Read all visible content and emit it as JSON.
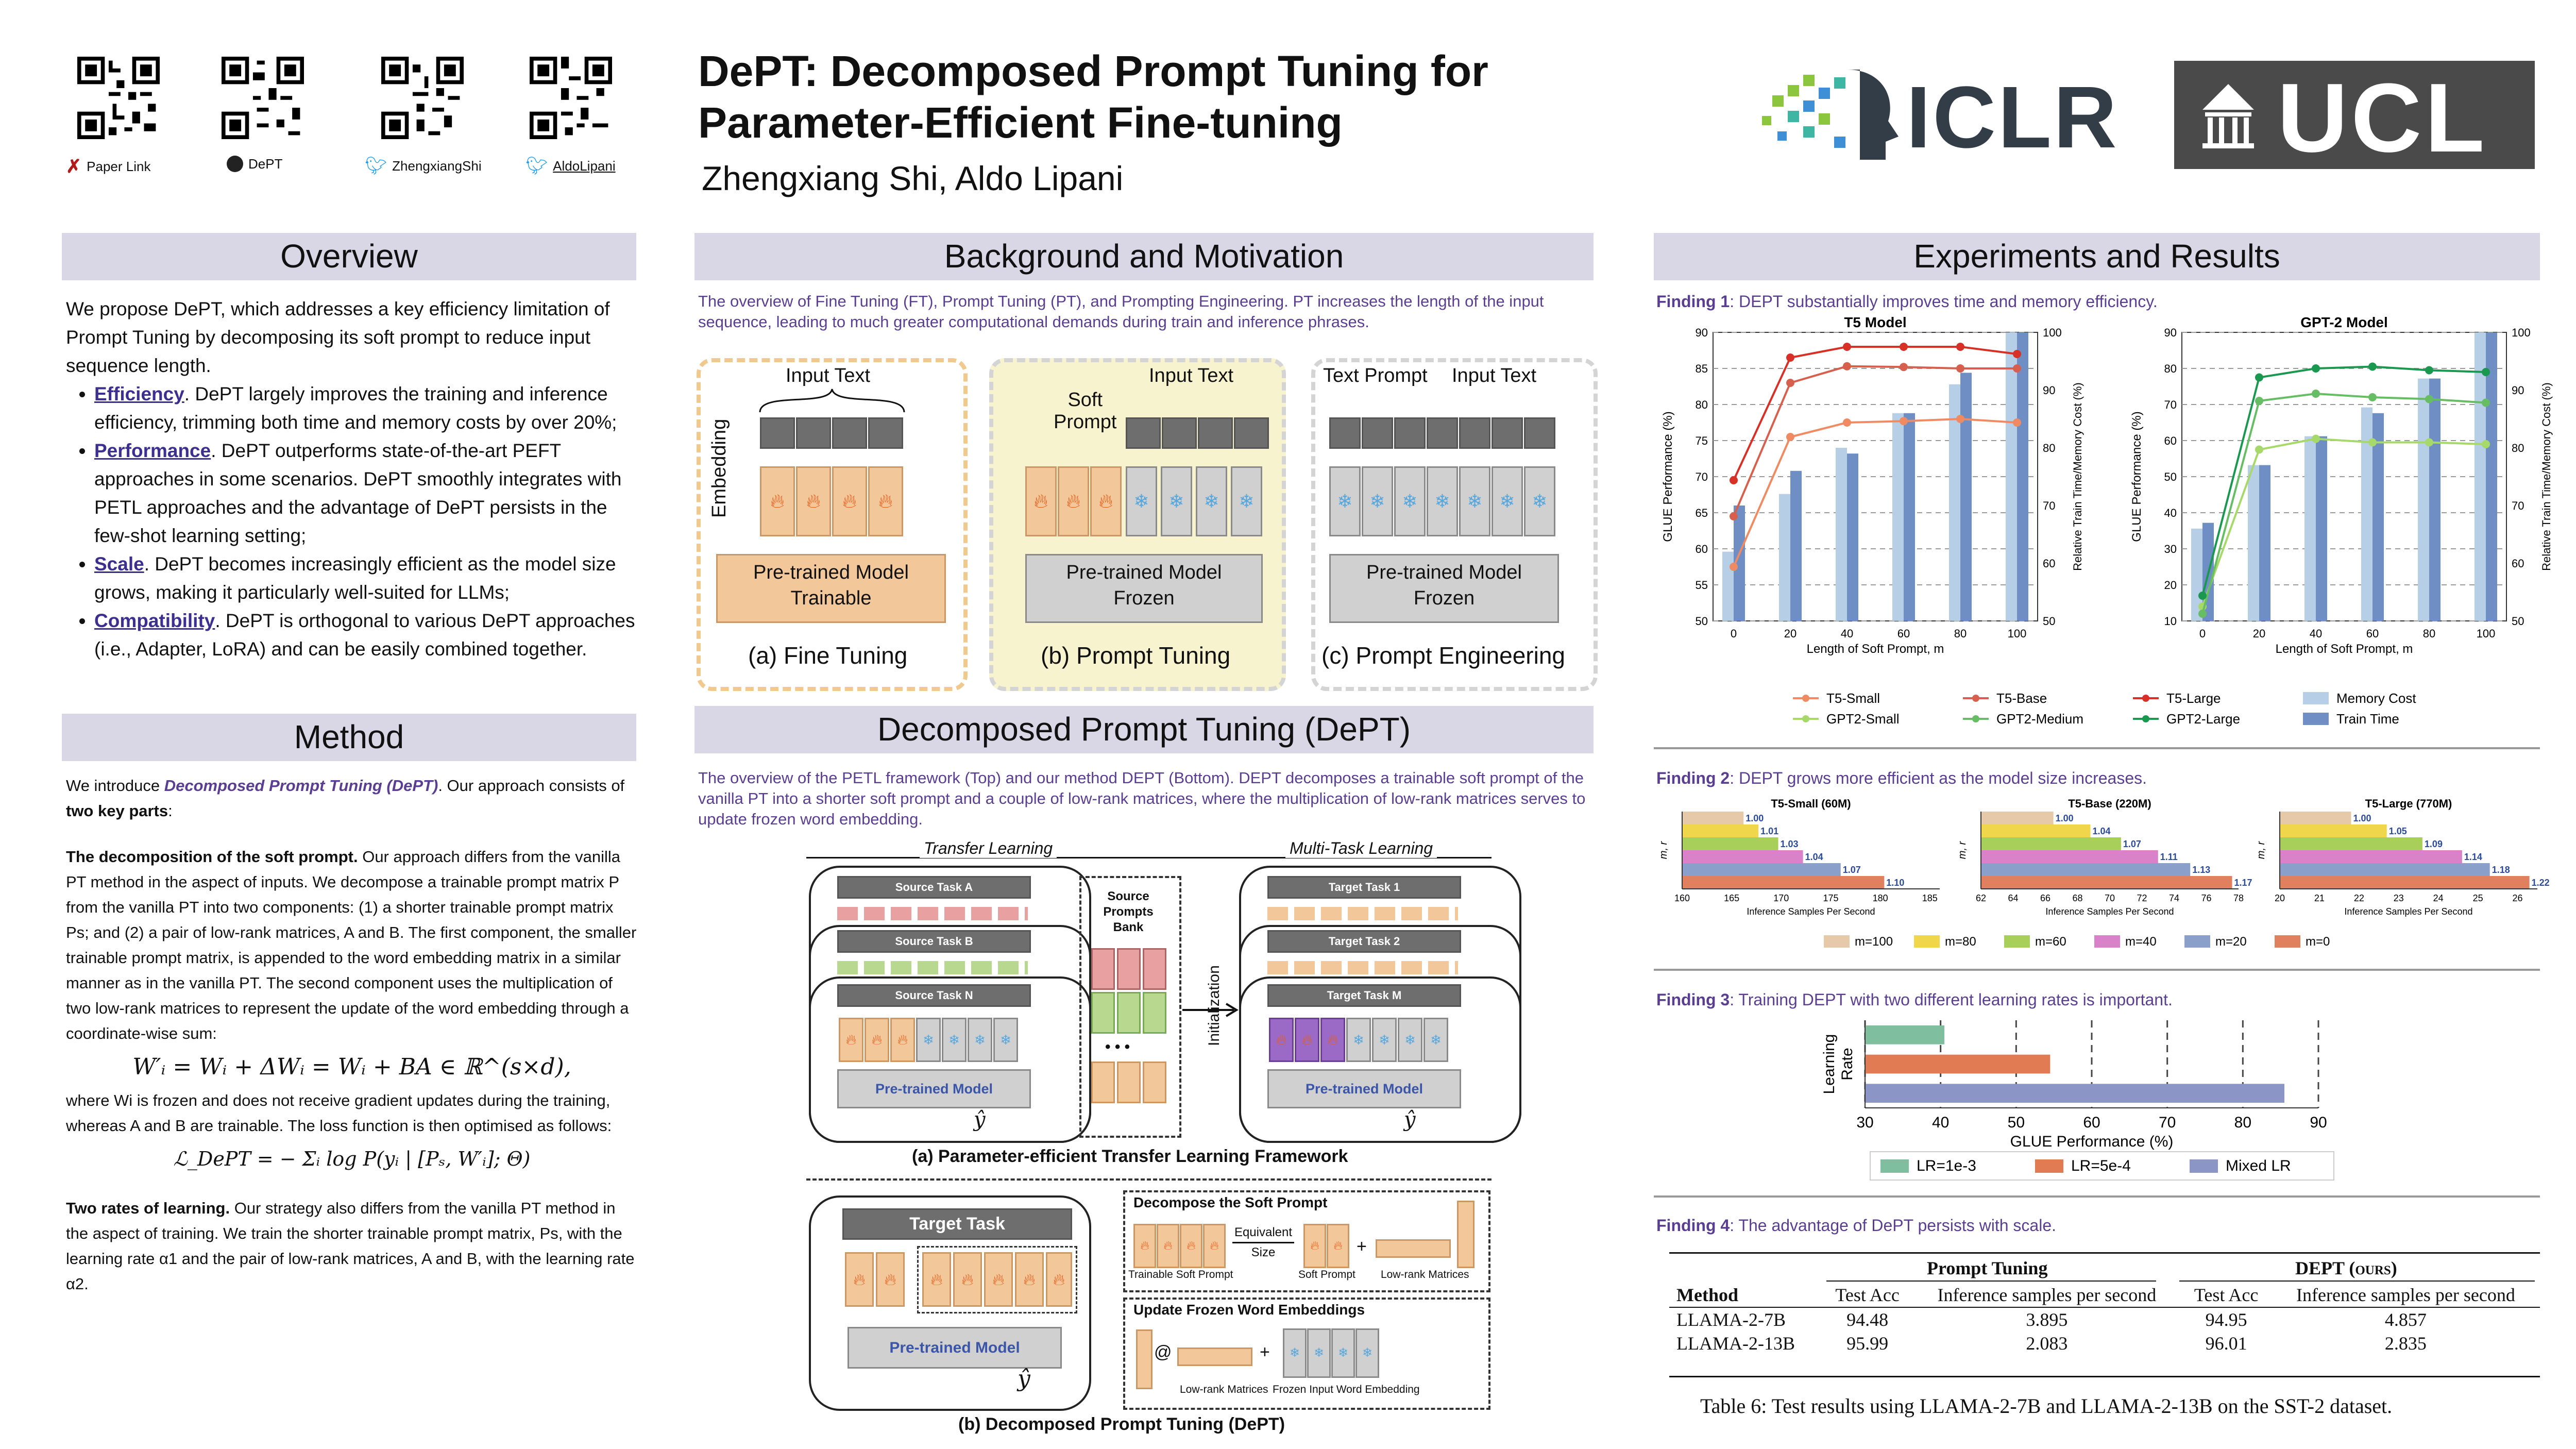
{
  "header": {
    "qr_labels": [
      "Paper Link",
      "DePT",
      "ZhengxiangShi",
      "AldoLipani"
    ],
    "title_line1": "DePT: Decomposed Prompt Tuning for",
    "title_line2": "Parameter-Efficient Fine-tuning",
    "authors": "Zhengxiang Shi, Aldo Lipani",
    "logo_iclr": "ICLR",
    "logo_ucl": "UCL"
  },
  "overview": {
    "heading": "Overview",
    "intro": "We propose DePT, which addresses a key efficiency limitation of Prompt Tuning by decomposing its soft prompt to reduce input sequence length.",
    "bullets": [
      {
        "term": "Efficiency",
        "text": ". DePT largely improves the training and inference efficiency, trimming both time and memory costs by over 20%;"
      },
      {
        "term": "Performance",
        "text": ". DePT outperforms state-of-the-art PEFT approaches in some scenarios. DePT smoothly integrates with PETL approaches and the advantage of DePT persists in the few-shot learning setting;"
      },
      {
        "term": "Scale",
        "text": ". DePT becomes increasingly efficient as the model size grows, making it particularly well-suited for LLMs;"
      },
      {
        "term": "Compatibility",
        "text": ". DePT is orthogonal to various DePT approaches (i.e., Adapter, LoRA) and can be easily combined together."
      }
    ]
  },
  "method": {
    "heading": "Method",
    "intro_a": "We introduce ",
    "intro_b": "Decomposed Prompt Tuning (DePT)",
    "intro_c": ". Our approach consists of ",
    "intro_d": "two key parts",
    "intro_e": ":",
    "p1_title": "The decomposition of the soft prompt.",
    "p1_text": " Our approach differs from the vanilla PT method in the aspect of inputs. We decompose a trainable prompt matrix P from the vanilla PT into two components: (1) a shorter trainable prompt matrix Ps; and (2) a pair of low-rank matrices, A and B. The first component, the smaller trainable prompt matrix, is appended to the word embedding matrix in a similar manner as in the vanilla PT. The second component uses the multiplication of two low-rank matrices to represent the update of the word embedding through a coordinate-wise sum:",
    "formula1": "W′ᵢ = Wᵢ + ΔWᵢ = Wᵢ + BA ∈ ℝ^(s×d),",
    "p2_text": "where Wi is frozen and does not receive gradient updates during the training, whereas A and B are trainable. The loss function is then optimised as follows:",
    "formula2": "ℒ_DePT = − Σᵢ log P(yᵢ | [Pₛ, W′ᵢ]; Θ)",
    "p3_title": "Two rates of learning.",
    "p3_text": " Our strategy also differs from the vanilla PT method in the aspect of training. We train the shorter trainable prompt matrix, Ps, with the learning rate α1 and the pair of low-rank matrices, A and B, with the learning rate α2."
  },
  "background": {
    "heading": "Background and Motivation",
    "caption": "The overview of Fine Tuning (FT), Prompt Tuning (PT), and Prompting Engineering. PT increases the length of the input sequence, leading to much greater computational demands during train and inference phrases.",
    "ft": {
      "input": "Input Text",
      "embedding": "Embedding",
      "model_line1": "Pre-trained Model",
      "model_line2": "Trainable",
      "label": "(a) Fine Tuning"
    },
    "pt": {
      "soft_line1": "Soft",
      "soft_line2": "Prompt",
      "input": "Input Text",
      "model_line1": "Pre-trained Model",
      "model_line2": "Frozen",
      "label": "(b) Prompt Tuning"
    },
    "pe": {
      "text_prompt": "Text Prompt",
      "input": "Input Text",
      "model_line1": "Pre-trained Model",
      "model_line2": "Frozen",
      "label": "(c) Prompt Engineering"
    }
  },
  "dept": {
    "heading": "Decomposed Prompt Tuning (DePT)",
    "caption": "The overview of the PETL framework (Top) and our method DEPT (Bottom). DEPT decomposes a trainable soft prompt of the vanilla PT into a shorter soft prompt and a couple of low-rank matrices, where the multiplication of low-rank matrices serves to update frozen word embedding.",
    "transfer": "Transfer Learning",
    "multitask": "Multi-Task Learning",
    "source_tasks": [
      "Source Task A",
      "Source Task B",
      "Source Task N"
    ],
    "target_tasks": [
      "Target Task 1",
      "Target Task 2",
      "Target Task M"
    ],
    "bank": [
      "Source",
      "Prompts",
      "Bank"
    ],
    "init": "Initialization",
    "ptm": "Pre-trained Model",
    "yhat": "ŷ",
    "ellipsis": "• • •",
    "caption_a": "(a) Parameter-efficient Transfer Learning Framework",
    "target_task": "Target Task",
    "decompose_title": "Decompose the Soft Prompt",
    "equiv": "Equivalent",
    "size": "Size",
    "trainable_soft": "Trainable Soft Prompt",
    "soft_prompt": "Soft Prompt",
    "low_rank": "Low-rank Matrices",
    "update_title": "Update Frozen Word Embeddings",
    "frozen_input": "Frozen Input Word Embedding",
    "at": "@",
    "plus": "+",
    "caption_b": "(b) Decomposed Prompt Tuning (DePT)"
  },
  "experiments": {
    "heading": "Experiments and Results",
    "finding1_label": "Finding 1",
    "finding1_text": ": DEPT substantially improves time and memory efficiency.",
    "finding2_label": "Finding 2",
    "finding2_text": ": DEPT grows more efficient as the model size increases.",
    "finding3_label": "Finding 3",
    "finding3_text": ": Training DEPT with two different learning rates is important.",
    "finding4_label": "Finding 4",
    "finding4_text": ": The advantage of DePT persists with scale.",
    "table": {
      "group1": "Prompt Tuning",
      "group2": "DEPT (ours)",
      "headers": [
        "Method",
        "Test Acc",
        "Inference samples per second",
        "Test Acc",
        "Inference samples per second"
      ],
      "rows": [
        [
          "LLAMA-2-7B",
          "94.48",
          "3.895",
          "94.95",
          "4.857"
        ],
        [
          "LLAMA-2-13B",
          "95.99",
          "2.083",
          "96.01",
          "2.835"
        ]
      ],
      "caption": "Table 6:  Test results using LLAMA-2-7B and LLAMA-2-13B on the SST-2 dataset."
    }
  },
  "chart_data": [
    {
      "type": "line",
      "title": "T5 Model",
      "xlabel": "Length of Soft Prompt, m",
      "ylabel": "GLUE Performance (%)",
      "ylabel_right": "Relative Train Time/Memory Cost (%)",
      "x": [
        0,
        20,
        40,
        60,
        80,
        100
      ],
      "ylim": [
        50,
        90
      ],
      "yticks": [
        50,
        55,
        60,
        65,
        70,
        75,
        80,
        85,
        90
      ],
      "y2lim": [
        50,
        100
      ],
      "y2ticks": [
        50,
        60,
        70,
        80,
        90,
        100
      ],
      "series": [
        {
          "name": "T5-Small",
          "values": [
            57.5,
            75.5,
            77.5,
            77.7,
            78.0,
            77.5
          ],
          "color": "#ef8a62"
        },
        {
          "name": "T5-Base",
          "values": [
            64.5,
            83.0,
            85.3,
            85.2,
            85.0,
            85.0
          ],
          "color": "#d6604d"
        },
        {
          "name": "T5-Large",
          "values": [
            69.5,
            86.5,
            88.0,
            88.0,
            88.0,
            87.0
          ],
          "color": "#d73027"
        }
      ],
      "bars": [
        {
          "name": "Memory Cost",
          "values": [
            62,
            72,
            80,
            86,
            91,
            100
          ],
          "color": "#b7cfe6"
        },
        {
          "name": "Train Time",
          "values": [
            70,
            76,
            79,
            86,
            93,
            100
          ],
          "color": "#6f8fc4"
        }
      ]
    },
    {
      "type": "line",
      "title": "GPT-2 Model",
      "xlabel": "Length of Soft Prompt, m",
      "ylabel": "GLUE Performance (%)",
      "ylabel_right": "Relative Train Time/Memory Cost (%)",
      "x": [
        0,
        20,
        40,
        60,
        80,
        100
      ],
      "ylim": [
        10,
        90
      ],
      "yticks": [
        10,
        20,
        30,
        40,
        50,
        60,
        70,
        80,
        90
      ],
      "y2lim": [
        50,
        100
      ],
      "y2ticks": [
        50,
        60,
        70,
        80,
        90,
        100
      ],
      "series": [
        {
          "name": "GPT2-Small",
          "values": [
            14.0,
            57.5,
            60.5,
            59.5,
            59.5,
            59.0
          ],
          "color": "#a6d96a"
        },
        {
          "name": "GPT2-Medium",
          "values": [
            12.0,
            71.0,
            73.0,
            72.0,
            71.5,
            70.5
          ],
          "color": "#66bd63"
        },
        {
          "name": "GPT2-Large",
          "values": [
            17.0,
            77.5,
            80.0,
            80.5,
            79.5,
            79.0
          ],
          "color": "#1a9850"
        }
      ],
      "bars": [
        {
          "name": "Memory Cost",
          "values": [
            66,
            77,
            82,
            87,
            92,
            100
          ],
          "color": "#b7cfe6"
        },
        {
          "name": "Train Time",
          "values": [
            67,
            77,
            82,
            86,
            92,
            100
          ],
          "color": "#6f8fc4"
        }
      ]
    },
    {
      "type": "bar",
      "orientation": "horizontal",
      "title": "T5-Small (60M)",
      "xlabel": "Inference Samples Per Second",
      "ylabel": "m, r",
      "xticks": [
        160,
        165,
        170,
        175,
        180,
        185
      ],
      "xlim": [
        160,
        186
      ],
      "categories": [
        "m=100",
        "m=80",
        "m=60",
        "m=40",
        "m=20",
        "m=0"
      ],
      "values": [
        166.2,
        167.7,
        169.7,
        172.2,
        176.0,
        180.4
      ],
      "data_labels": [
        "1.00",
        "1.01",
        "1.03",
        "1.04",
        "1.07",
        "1.10"
      ]
    },
    {
      "type": "bar",
      "orientation": "horizontal",
      "title": "T5-Base (220M)",
      "xlabel": "Inference Samples Per Second",
      "ylabel": "m, r",
      "xticks": [
        62,
        64,
        66,
        68,
        70,
        72,
        74,
        76,
        78
      ],
      "xlim": [
        62,
        78
      ],
      "categories": [
        "m=100",
        "m=80",
        "m=60",
        "m=40",
        "m=20",
        "m=0"
      ],
      "values": [
        66.5,
        68.8,
        70.7,
        73.0,
        75.0,
        77.6
      ],
      "data_labels": [
        "1.00",
        "1.04",
        "1.07",
        "1.11",
        "1.13",
        "1.17"
      ]
    },
    {
      "type": "bar",
      "orientation": "horizontal",
      "title": "T5-Large (770M)",
      "xlabel": "Inference Samples Per Second",
      "ylabel": "m, r",
      "xticks": [
        20,
        21,
        22,
        23,
        24,
        25,
        26
      ],
      "xlim": [
        20,
        26.5
      ],
      "categories": [
        "m=100",
        "m=80",
        "m=60",
        "m=40",
        "m=20",
        "m=0"
      ],
      "values": [
        21.8,
        22.7,
        23.6,
        24.6,
        25.3,
        26.3
      ],
      "data_labels": [
        "1.00",
        "1.05",
        "1.09",
        "1.14",
        "1.18",
        "1.22"
      ]
    },
    {
      "type": "bar",
      "orientation": "horizontal",
      "ylabel": "Learning Rate",
      "xlabel": "GLUE Performance (%)",
      "xticks": [
        30,
        40,
        50,
        60,
        70,
        80,
        90
      ],
      "xlim": [
        30,
        90
      ],
      "categories": [
        "Mixed LR",
        "LR=5e-4",
        "LR=1e-3"
      ],
      "values": [
        85.5,
        54.5,
        40.5
      ],
      "colors": [
        "#8c96c6",
        "#e07b54",
        "#7fbf9f"
      ],
      "legend": [
        "LR=1e-3",
        "LR=5e-4",
        "Mixed LR"
      ]
    }
  ],
  "legends": {
    "line_legend": [
      "T5-Small",
      "T5-Base",
      "T5-Large",
      "Memory Cost",
      "GPT2-Small",
      "GPT2-Medium",
      "GPT2-Large",
      "Train Time"
    ],
    "m_legend": [
      "m=100",
      "m=80",
      "m=60",
      "m=40",
      "m=20",
      "m=0"
    ],
    "m_colors": [
      "#e6c9a8",
      "#f0d64a",
      "#a7cf5a",
      "#d982c9",
      "#8a9fc9",
      "#e0805f"
    ]
  }
}
